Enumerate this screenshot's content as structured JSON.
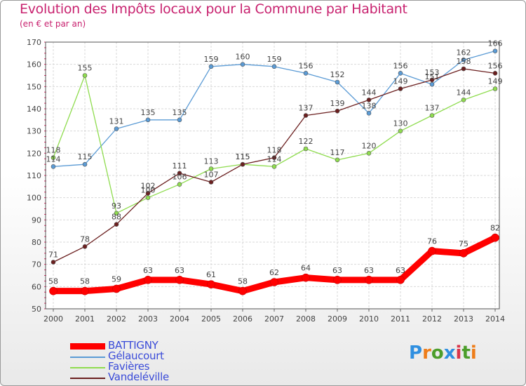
{
  "title": "Evolution des Impôts locaux pour la Commune par Habitant",
  "subtitle": "(en € et par an)",
  "logo": {
    "text": "Proxiti",
    "colors": [
      "#2f8fe0",
      "#ee7d1a",
      "#4c9e2b",
      "#2f8fe0",
      "#d9354a",
      "#4c9e2b",
      "#ee7d1a"
    ]
  },
  "chart_data": {
    "type": "line",
    "title": "Evolution des Impôts locaux pour la Commune par Habitant",
    "subtitle": "(en € et par an)",
    "xlabel": "",
    "ylabel": "",
    "x": [
      "2000",
      "2001",
      "2002",
      "2003",
      "2004",
      "2005",
      "2006",
      "2007",
      "2008",
      "2009",
      "2010",
      "2011",
      "2012",
      "2013",
      "2014"
    ],
    "ylim": [
      50,
      170
    ],
    "yticks": [
      50,
      60,
      70,
      80,
      90,
      100,
      110,
      120,
      130,
      140,
      150,
      160,
      170
    ],
    "grid": true,
    "series": [
      {
        "name": "BATTIGNY",
        "color": "#ff0000",
        "thick": true,
        "values": [
          58,
          58,
          59,
          63,
          63,
          61,
          58,
          62,
          64,
          63,
          63,
          63,
          76,
          75,
          82
        ]
      },
      {
        "name": "Gélaucourt",
        "color": "#5b9bd5",
        "values": [
          114,
          115,
          131,
          135,
          135,
          159,
          160,
          159,
          156,
          152,
          138,
          156,
          151,
          162,
          166
        ]
      },
      {
        "name": "Favières",
        "color": "#8fdc4f",
        "values": [
          118,
          155,
          93,
          100,
          106,
          113,
          115,
          114,
          122,
          117,
          120,
          130,
          137,
          144,
          149
        ]
      },
      {
        "name": "Vandeléville",
        "color": "#6b1f1f",
        "values": [
          71,
          78,
          88,
          102,
          111,
          107,
          115,
          118,
          137,
          139,
          144,
          149,
          153,
          158,
          156
        ]
      }
    ],
    "legend_position": "bottom-left"
  }
}
